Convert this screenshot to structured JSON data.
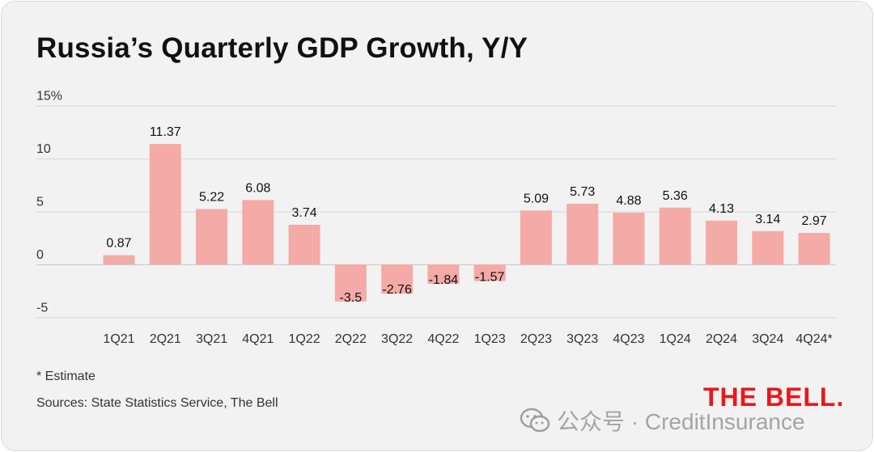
{
  "title": "Russia’s Quarterly GDP Growth, Y/Y",
  "footnote": "* Estimate",
  "sources": "Sources: State Statistics Service, The Bell",
  "brand": "THE BELL.",
  "watermark": {
    "text": "公众号 · CreditInsurance",
    "icon": "wechat-icon"
  },
  "colors": {
    "bar": "#f4aaa6",
    "grid": "#d6d6d6",
    "zero": "#c9c9c9",
    "text": "#111111",
    "brand": "#e8181d"
  },
  "chart_data": {
    "type": "bar",
    "title": "Russia’s Quarterly GDP Growth, Y/Y",
    "xlabel": "",
    "ylabel": "",
    "ylim": [
      -5,
      15
    ],
    "yticks": [
      {
        "value": 15,
        "label": "15%"
      },
      {
        "value": 10,
        "label": "10"
      },
      {
        "value": 5,
        "label": "5"
      },
      {
        "value": 0,
        "label": "0"
      },
      {
        "value": -5,
        "label": "-5"
      }
    ],
    "grid": true,
    "categories": [
      "1Q21",
      "2Q21",
      "3Q21",
      "4Q21",
      "1Q22",
      "2Q22",
      "3Q22",
      "4Q22",
      "1Q23",
      "2Q23",
      "3Q23",
      "4Q23",
      "1Q24",
      "2Q24",
      "3Q24",
      "4Q24*"
    ],
    "values": [
      0.87,
      11.37,
      5.22,
      6.08,
      3.74,
      -3.5,
      -2.76,
      -1.84,
      -1.57,
      5.09,
      5.73,
      4.88,
      5.36,
      4.13,
      3.14,
      2.97
    ],
    "value_labels": [
      "0.87",
      "11.37",
      "5.22",
      "6.08",
      "3.74",
      "-3.5",
      "-2.76",
      "-1.84",
      "-1.57",
      "5.09",
      "5.73",
      "4.88",
      "5.36",
      "4.13",
      "3.14",
      "2.97"
    ]
  }
}
